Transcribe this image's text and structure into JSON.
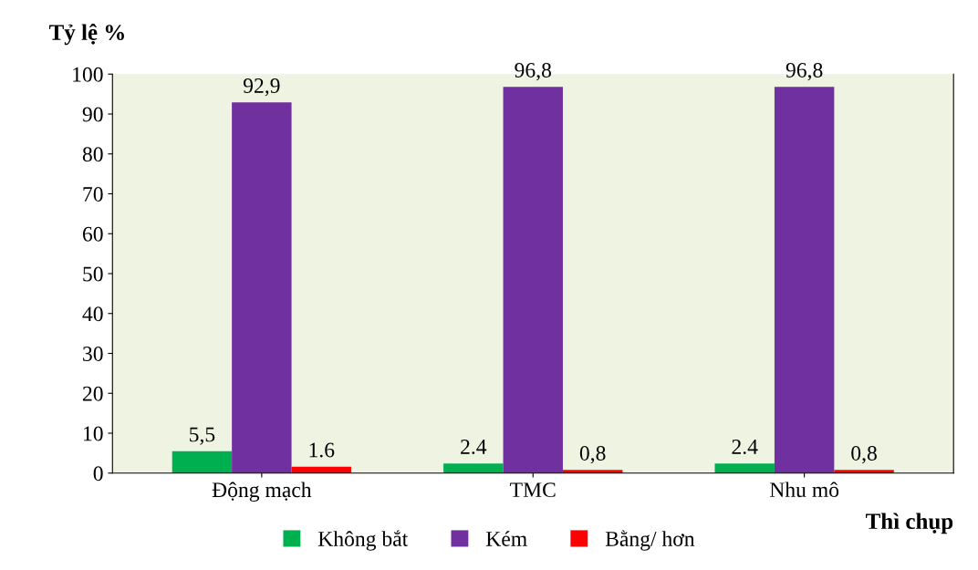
{
  "chart_data": {
    "type": "bar",
    "ylabel": "Tỷ lệ %",
    "xlabel": "Thì chụp",
    "categories": [
      "Động mạch",
      "TMC",
      "Nhu mô"
    ],
    "series": [
      {
        "name": "Không bắt",
        "color": "#00b050",
        "values": [
          5.5,
          2.4,
          2.4
        ],
        "value_labels": [
          "5,5",
          "2.4",
          "2.4"
        ]
      },
      {
        "name": "Kém",
        "color": "#7030a0",
        "values": [
          92.9,
          96.8,
          96.8
        ],
        "value_labels": [
          "92,9",
          "96,8",
          "96,8"
        ]
      },
      {
        "name": "Bằng/ hơn",
        "color": "#ff0000",
        "values": [
          1.6,
          0.8,
          0.8
        ],
        "value_labels": [
          "1.6",
          "0,8",
          "0,8"
        ]
      }
    ],
    "ylim": [
      0,
      100
    ],
    "yticks": [
      0,
      10,
      20,
      30,
      40,
      50,
      60,
      70,
      80,
      90,
      100
    ],
    "grid": false,
    "legend": "bottom"
  }
}
